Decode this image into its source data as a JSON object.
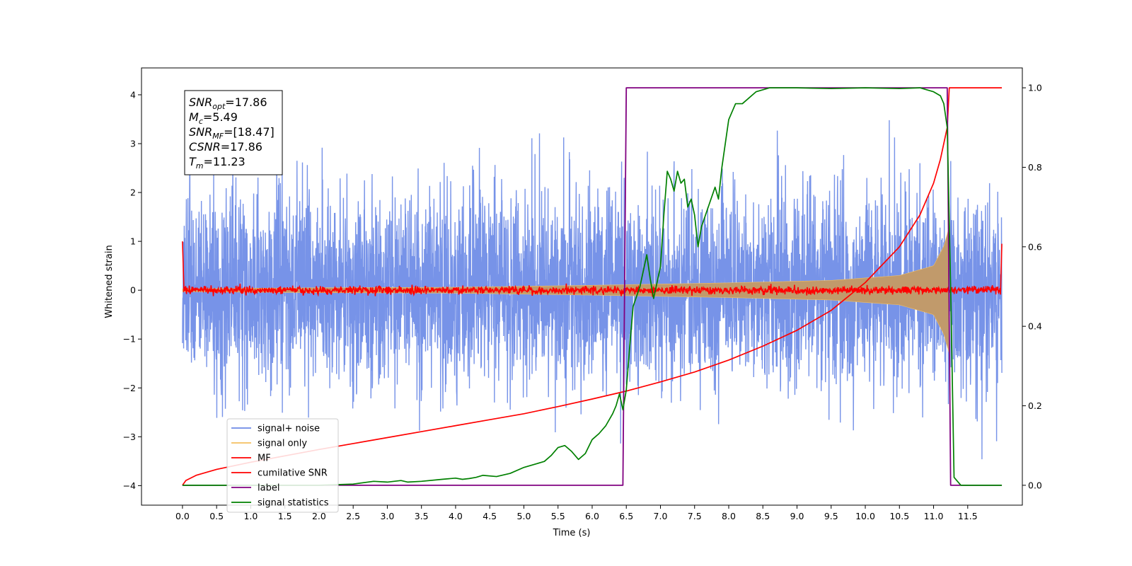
{
  "chart_data": {
    "type": "line",
    "title": "",
    "xlabel": "Time (s)",
    "ylabel": "Whitened strain",
    "ylabel_right": "",
    "xlim": [
      -0.6,
      12.3
    ],
    "ylim": [
      -4.4,
      4.55
    ],
    "ylim_right": [
      -0.05,
      1.05
    ],
    "x_ticks": [
      "0.0",
      "0.5",
      "1.0",
      "1.5",
      "2.0",
      "2.5",
      "3.0",
      "3.5",
      "4.0",
      "4.5",
      "5.0",
      "5.5",
      "6.0",
      "6.5",
      "7.0",
      "7.5",
      "8.0",
      "8.5",
      "9.0",
      "9.5",
      "10.0",
      "10.5",
      "11.0",
      "11.5"
    ],
    "y_ticks": [
      "4",
      "3",
      "2",
      "1",
      "0",
      "−1",
      "−2",
      "−3",
      "−4"
    ],
    "y_ticks_right": [
      "1.0",
      "0.8",
      "0.6",
      "0.4",
      "0.2",
      "0.0"
    ],
    "grid": false,
    "legend_position": "lower-left",
    "colors": {
      "signal_noise": "#6b8ae6",
      "signal_only": "#f5c060",
      "signal_envelope_fill": "#c19a6b",
      "mf": "#ff0000",
      "cumulative_snr": "#ff0000",
      "label": "#800080",
      "signal_statistics": "#008000"
    },
    "info_box": [
      {
        "sym": "SNR",
        "sub": "opt",
        "rest": "=17.86"
      },
      {
        "sym": "M",
        "sub": "c",
        "rest": "=5.49"
      },
      {
        "sym": "SNR",
        "sub": "MF",
        "rest": "=[18.47]"
      },
      {
        "sym": "CSNR",
        "sub": "",
        "rest": "=17.86"
      },
      {
        "sym": "T",
        "sub": "m",
        "rest": "=11.23"
      }
    ],
    "series": [
      {
        "name": "signal+ noise",
        "axis": "left",
        "description_kind": "noise",
        "std": 1.0,
        "t_start": 0.0,
        "t_end": 12.0
      },
      {
        "name": "signal only",
        "axis": "left",
        "description_kind": "chirp",
        "t_start": 0.0,
        "t_merger": 11.23,
        "envelope": [
          [
            0.0,
            0.03
          ],
          [
            2.0,
            0.05
          ],
          [
            4.0,
            0.06
          ],
          [
            6.0,
            0.1
          ],
          [
            8.0,
            0.15
          ],
          [
            9.5,
            0.2
          ],
          [
            10.5,
            0.3
          ],
          [
            11.0,
            0.5
          ],
          [
            11.15,
            0.9
          ],
          [
            11.23,
            1.3
          ]
        ]
      },
      {
        "name": "MF",
        "axis": "left",
        "description_kind": "mf-noise",
        "baseline": 0.0,
        "std": 0.04,
        "edges": [
          [
            0.0,
            1.0
          ],
          [
            0.02,
            0.1
          ],
          [
            11.98,
            0.1
          ],
          [
            12.0,
            0.95
          ]
        ]
      },
      {
        "name": "cumilative SNR",
        "axis": "right",
        "x": [
          0.0,
          0.05,
          0.2,
          0.5,
          1.0,
          1.5,
          2.0,
          2.5,
          3.0,
          3.5,
          4.0,
          4.5,
          5.0,
          5.5,
          6.0,
          6.5,
          7.0,
          7.5,
          8.0,
          8.5,
          9.0,
          9.5,
          10.0,
          10.5,
          10.8,
          11.0,
          11.1,
          11.2,
          11.23,
          11.5,
          12.0
        ],
        "y": [
          0.0,
          0.012,
          0.025,
          0.04,
          0.058,
          0.074,
          0.09,
          0.105,
          0.12,
          0.135,
          0.15,
          0.165,
          0.18,
          0.198,
          0.217,
          0.237,
          0.26,
          0.285,
          0.315,
          0.35,
          0.39,
          0.44,
          0.51,
          0.6,
          0.68,
          0.76,
          0.82,
          0.9,
          1.0,
          1.0,
          1.0
        ]
      },
      {
        "name": "label",
        "axis": "right",
        "x": [
          0.0,
          6.45,
          6.5,
          11.2,
          11.25,
          12.0
        ],
        "y": [
          0.0,
          0.0,
          1.0,
          1.0,
          0.0,
          0.0
        ]
      },
      {
        "name": "signal statistics",
        "axis": "right",
        "x": [
          0.0,
          1.0,
          2.0,
          2.5,
          2.8,
          3.0,
          3.2,
          3.3,
          3.5,
          3.8,
          4.0,
          4.1,
          4.2,
          4.3,
          4.4,
          4.6,
          4.8,
          5.0,
          5.2,
          5.3,
          5.4,
          5.5,
          5.6,
          5.7,
          5.8,
          5.9,
          6.0,
          6.1,
          6.2,
          6.3,
          6.35,
          6.4,
          6.45,
          6.5,
          6.55,
          6.6,
          6.7,
          6.8,
          6.85,
          6.9,
          7.0,
          7.05,
          7.1,
          7.15,
          7.2,
          7.25,
          7.3,
          7.35,
          7.4,
          7.45,
          7.5,
          7.55,
          7.6,
          7.7,
          7.8,
          7.85,
          7.9,
          8.0,
          8.1,
          8.2,
          8.4,
          8.6,
          9.0,
          9.5,
          10.0,
          10.5,
          10.8,
          11.0,
          11.1,
          11.15,
          11.2,
          11.25,
          11.3,
          11.4,
          12.0
        ],
        "y": [
          0.0,
          0.0,
          0.0,
          0.003,
          0.01,
          0.008,
          0.012,
          0.008,
          0.01,
          0.015,
          0.018,
          0.015,
          0.017,
          0.02,
          0.025,
          0.022,
          0.03,
          0.045,
          0.055,
          0.06,
          0.075,
          0.095,
          0.1,
          0.085,
          0.065,
          0.08,
          0.115,
          0.13,
          0.15,
          0.18,
          0.2,
          0.23,
          0.19,
          0.24,
          0.35,
          0.45,
          0.5,
          0.58,
          0.52,
          0.47,
          0.55,
          0.68,
          0.79,
          0.77,
          0.74,
          0.79,
          0.76,
          0.77,
          0.7,
          0.72,
          0.68,
          0.6,
          0.65,
          0.7,
          0.75,
          0.72,
          0.8,
          0.92,
          0.96,
          0.96,
          0.99,
          1.0,
          1.0,
          0.998,
          1.0,
          0.998,
          1.0,
          0.99,
          0.98,
          0.96,
          0.9,
          0.5,
          0.02,
          0.0,
          0.0
        ]
      }
    ]
  }
}
